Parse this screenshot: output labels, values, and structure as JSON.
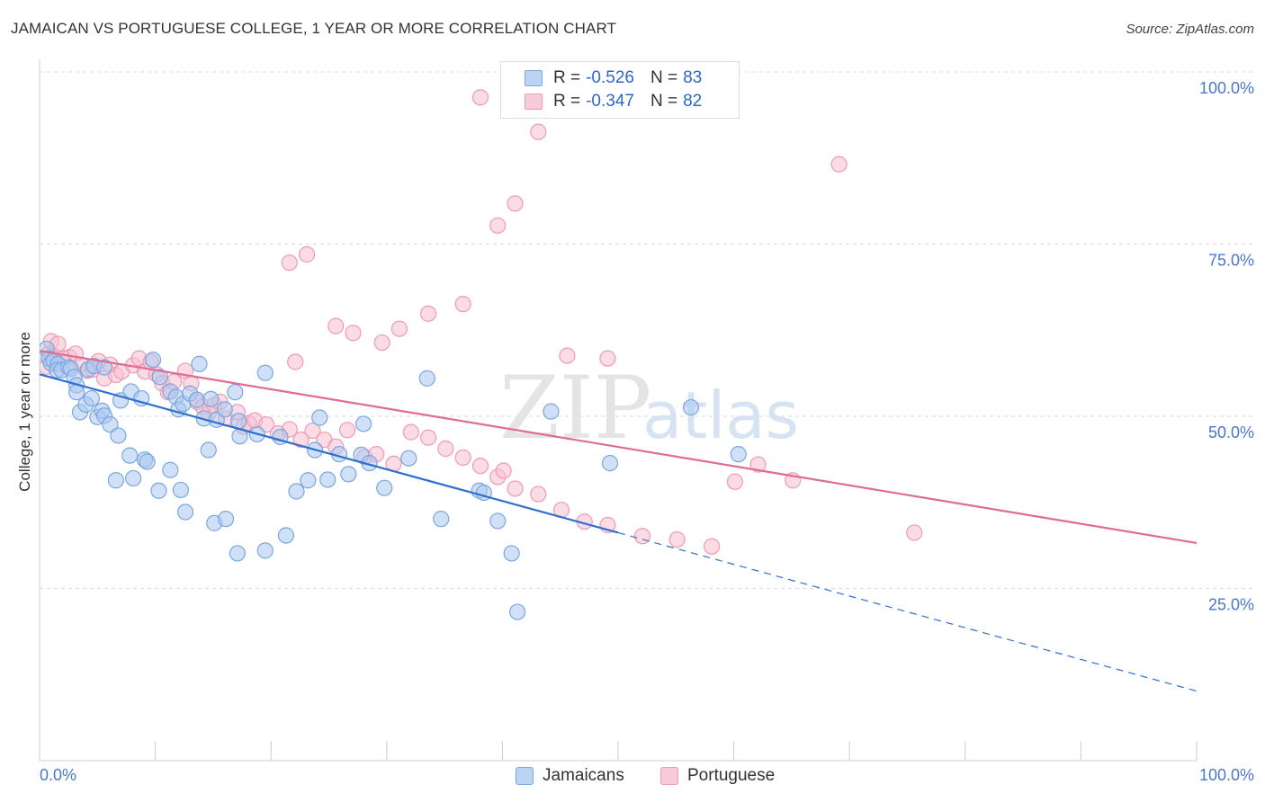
{
  "title": "JAMAICAN VS PORTUGUESE COLLEGE, 1 YEAR OR MORE CORRELATION CHART",
  "source": "Source: ZipAtlas.com",
  "watermark": {
    "zip": "ZIP",
    "atlas": "atlas"
  },
  "legend": {
    "rows": [
      {
        "r_label": "R =",
        "r_value": "-0.526",
        "n_label": "N =",
        "n_value": "83"
      },
      {
        "r_label": "R =",
        "r_value": "-0.347",
        "n_label": "N =",
        "n_value": "82"
      }
    ]
  },
  "bottom_legend": [
    "Jamaicans",
    "Portuguese"
  ],
  "x_axis": {
    "min_label": "0.0%",
    "max_label": "100.0%"
  },
  "colors": {
    "jamaicans_fill": "#a9c8f0",
    "jamaicans_stroke": "#7aa6e0",
    "jamaicans_line": "#2e6fd0",
    "portuguese_fill": "#f7bfd0",
    "portuguese_stroke": "#ee9ab3",
    "portuguese_line": "#e06c93",
    "grid": "#d9d9d9",
    "axis_text": "#4a78c8"
  },
  "chart_data": {
    "type": "scatter",
    "title": "JAMAICAN VS PORTUGUESE COLLEGE, 1 YEAR OR MORE CORRELATION CHART",
    "xlabel": "",
    "ylabel": "College, 1 year or more",
    "xlim": [
      0,
      100
    ],
    "ylim": [
      0,
      100
    ],
    "y_ticks": [
      25,
      50,
      75,
      100
    ],
    "y_tick_labels": [
      "25.0%",
      "50.0%",
      "75.0%",
      "100.0%"
    ],
    "x_tick_labels": [
      "0.0%",
      "100.0%"
    ],
    "series": [
      {
        "name": "Jamaicans",
        "r": -0.526,
        "n": 83,
        "trend": {
          "x0": 0,
          "y0": 56.1,
          "x1_solid": 50,
          "y_at_x1": 33.1,
          "x_end": 100,
          "y_end": 10.1
        },
        "points": [
          [
            0.6,
            59.8
          ],
          [
            0.8,
            58.4
          ],
          [
            1.0,
            57.7
          ],
          [
            1.2,
            58.1
          ],
          [
            1.6,
            57.6
          ],
          [
            1.5,
            56.7
          ],
          [
            1.9,
            56.7
          ],
          [
            2.5,
            57.1
          ],
          [
            2.7,
            56.9
          ],
          [
            3.0,
            55.7
          ],
          [
            3.2,
            54.5
          ],
          [
            4.2,
            56.8
          ],
          [
            4.7,
            57.3
          ],
          [
            5.6,
            57.1
          ],
          [
            3.2,
            53.5
          ],
          [
            3.5,
            50.6
          ],
          [
            4.0,
            51.7
          ],
          [
            4.5,
            52.6
          ],
          [
            5.0,
            49.9
          ],
          [
            5.4,
            50.8
          ],
          [
            5.6,
            50.1
          ],
          [
            6.1,
            48.8
          ],
          [
            7.0,
            52.3
          ],
          [
            7.9,
            53.6
          ],
          [
            8.8,
            52.6
          ],
          [
            9.8,
            58.2
          ],
          [
            10.4,
            55.7
          ],
          [
            11.3,
            53.6
          ],
          [
            11.8,
            52.8
          ],
          [
            12.0,
            51.0
          ],
          [
            12.4,
            51.8
          ],
          [
            13.0,
            53.3
          ],
          [
            13.8,
            57.6
          ],
          [
            13.6,
            52.4
          ],
          [
            14.2,
            49.7
          ],
          [
            14.8,
            52.5
          ],
          [
            15.3,
            49.5
          ],
          [
            16.0,
            51.0
          ],
          [
            16.9,
            53.5
          ],
          [
            17.2,
            49.3
          ],
          [
            17.3,
            47.1
          ],
          [
            18.8,
            47.4
          ],
          [
            19.5,
            56.3
          ],
          [
            20.8,
            47.0
          ],
          [
            14.6,
            45.1
          ],
          [
            11.3,
            42.2
          ],
          [
            9.1,
            43.7
          ],
          [
            8.1,
            41.0
          ],
          [
            6.6,
            40.7
          ],
          [
            6.8,
            47.2
          ],
          [
            7.8,
            44.3
          ],
          [
            9.3,
            43.4
          ],
          [
            10.3,
            39.2
          ],
          [
            12.2,
            39.3
          ],
          [
            12.6,
            36.1
          ],
          [
            15.1,
            34.5
          ],
          [
            16.1,
            35.1
          ],
          [
            17.1,
            30.1
          ],
          [
            19.5,
            30.5
          ],
          [
            21.3,
            32.7
          ],
          [
            22.2,
            39.1
          ],
          [
            23.2,
            40.7
          ],
          [
            23.8,
            45.1
          ],
          [
            24.9,
            40.8
          ],
          [
            24.2,
            49.8
          ],
          [
            25.9,
            44.5
          ],
          [
            26.7,
            41.6
          ],
          [
            27.8,
            44.4
          ],
          [
            28.5,
            43.2
          ],
          [
            29.8,
            39.6
          ],
          [
            31.9,
            43.9
          ],
          [
            33.5,
            55.5
          ],
          [
            34.7,
            35.1
          ],
          [
            38.0,
            39.2
          ],
          [
            38.4,
            38.9
          ],
          [
            39.6,
            34.8
          ],
          [
            40.8,
            30.1
          ],
          [
            41.3,
            21.6
          ],
          [
            44.2,
            50.7
          ],
          [
            49.3,
            43.2
          ],
          [
            56.3,
            51.3
          ],
          [
            60.4,
            44.5
          ],
          [
            28.0,
            48.9
          ]
        ]
      },
      {
        "name": "Portuguese",
        "r": -0.347,
        "n": 82,
        "trend": {
          "x0": 0,
          "y0": 59.5,
          "x1_solid": 100,
          "y_end": 31.6
        },
        "points": [
          [
            0.6,
            57.2
          ],
          [
            0.8,
            59.1
          ],
          [
            1.0,
            60.9
          ],
          [
            1.3,
            58.7
          ],
          [
            1.6,
            60.5
          ],
          [
            2.1,
            58.4
          ],
          [
            2.6,
            58.6
          ],
          [
            3.1,
            59.1
          ],
          [
            3.6,
            57.5
          ],
          [
            4.1,
            56.6
          ],
          [
            4.6,
            56.8
          ],
          [
            5.1,
            58.0
          ],
          [
            5.6,
            55.5
          ],
          [
            6.1,
            57.5
          ],
          [
            6.6,
            56.0
          ],
          [
            7.1,
            56.5
          ],
          [
            8.1,
            57.4
          ],
          [
            8.6,
            58.4
          ],
          [
            9.1,
            56.5
          ],
          [
            9.6,
            57.9
          ],
          [
            10.1,
            56.1
          ],
          [
            10.6,
            54.8
          ],
          [
            11.1,
            53.5
          ],
          [
            11.6,
            55.0
          ],
          [
            12.6,
            56.6
          ],
          [
            13.1,
            54.8
          ],
          [
            13.6,
            52.1
          ],
          [
            14.1,
            51.4
          ],
          [
            14.6,
            50.4
          ],
          [
            15.1,
            51.6
          ],
          [
            15.6,
            52.1
          ],
          [
            16.1,
            49.7
          ],
          [
            17.1,
            50.6
          ],
          [
            17.6,
            48.5
          ],
          [
            18.1,
            49.0
          ],
          [
            18.6,
            49.4
          ],
          [
            19.6,
            48.8
          ],
          [
            20.6,
            47.5
          ],
          [
            21.6,
            48.1
          ],
          [
            22.6,
            46.6
          ],
          [
            23.6,
            47.9
          ],
          [
            24.6,
            46.6
          ],
          [
            25.6,
            45.6
          ],
          [
            26.6,
            48.0
          ],
          [
            28.1,
            44.1
          ],
          [
            29.1,
            44.5
          ],
          [
            30.6,
            43.1
          ],
          [
            32.1,
            47.7
          ],
          [
            33.6,
            46.9
          ],
          [
            35.1,
            45.3
          ],
          [
            36.6,
            44.0
          ],
          [
            38.1,
            42.8
          ],
          [
            39.6,
            41.2
          ],
          [
            41.1,
            39.5
          ],
          [
            43.1,
            38.7
          ],
          [
            45.1,
            36.4
          ],
          [
            47.1,
            34.7
          ],
          [
            49.1,
            34.2
          ],
          [
            52.1,
            32.6
          ],
          [
            55.1,
            32.1
          ],
          [
            58.1,
            31.1
          ],
          [
            60.1,
            40.5
          ],
          [
            62.1,
            43.0
          ],
          [
            65.1,
            40.7
          ],
          [
            38.1,
            96.3
          ],
          [
            43.1,
            91.3
          ],
          [
            39.6,
            77.7
          ],
          [
            41.1,
            80.9
          ],
          [
            23.1,
            73.5
          ],
          [
            21.6,
            72.3
          ],
          [
            33.6,
            64.9
          ],
          [
            36.6,
            66.3
          ],
          [
            27.1,
            62.1
          ],
          [
            25.6,
            63.1
          ],
          [
            29.6,
            60.7
          ],
          [
            31.1,
            62.7
          ],
          [
            45.6,
            58.8
          ],
          [
            49.1,
            58.4
          ],
          [
            22.1,
            57.9
          ],
          [
            40.1,
            42.1
          ],
          [
            69.1,
            86.6
          ],
          [
            75.6,
            33.1
          ]
        ]
      }
    ]
  }
}
